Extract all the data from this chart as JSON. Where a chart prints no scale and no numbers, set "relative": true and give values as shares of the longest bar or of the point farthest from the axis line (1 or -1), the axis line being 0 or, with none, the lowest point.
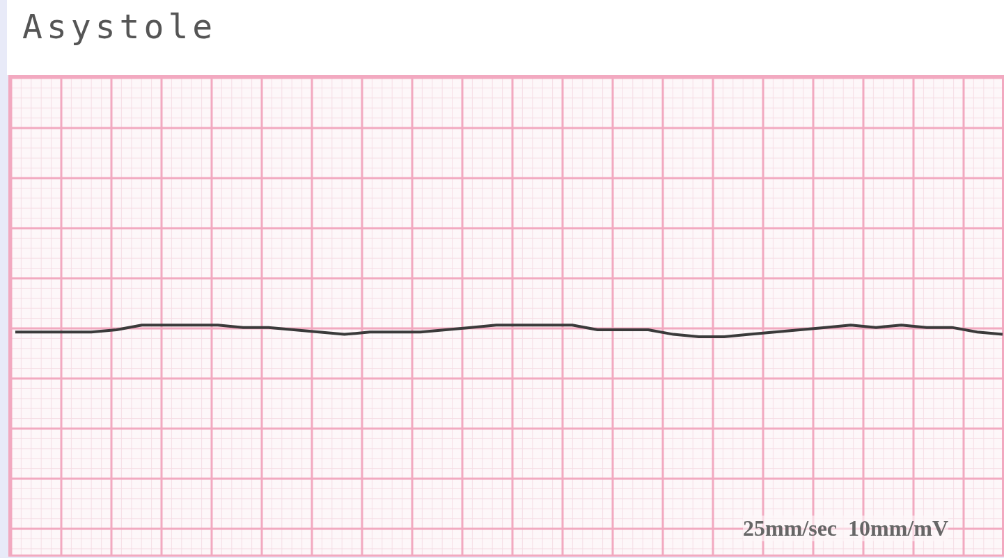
{
  "chart_data": {
    "type": "line",
    "title": "Asystole",
    "annotations": [
      "25mm/sec  10mm/mV"
    ],
    "relative": true,
    "grid": true,
    "legend": false,
    "marker": "none",
    "line_style": "solid",
    "color": "#3a3a3a",
    "categories": [
      null,
      null,
      null,
      null,
      null,
      null,
      null,
      null,
      null,
      null,
      null,
      null,
      null,
      null,
      null,
      null,
      null,
      null,
      null,
      null,
      null,
      null,
      null,
      null,
      null,
      null,
      null,
      null,
      null,
      null,
      null,
      null,
      null,
      null,
      null,
      null,
      null,
      null,
      null,
      null
    ],
    "values": [
      0.97,
      0.97,
      0.97,
      0.97,
      0.98,
      1.0,
      1.0,
      1.0,
      1.0,
      0.99,
      0.99,
      0.98,
      0.97,
      0.96,
      0.97,
      0.97,
      0.97,
      0.98,
      0.99,
      1.0,
      1.0,
      1.0,
      1.0,
      0.98,
      0.98,
      0.98,
      0.96,
      0.95,
      0.95,
      0.96,
      0.97,
      0.98,
      0.99,
      1.0,
      0.99,
      1.0,
      0.99,
      0.99,
      0.97,
      0.96
    ]
  }
}
